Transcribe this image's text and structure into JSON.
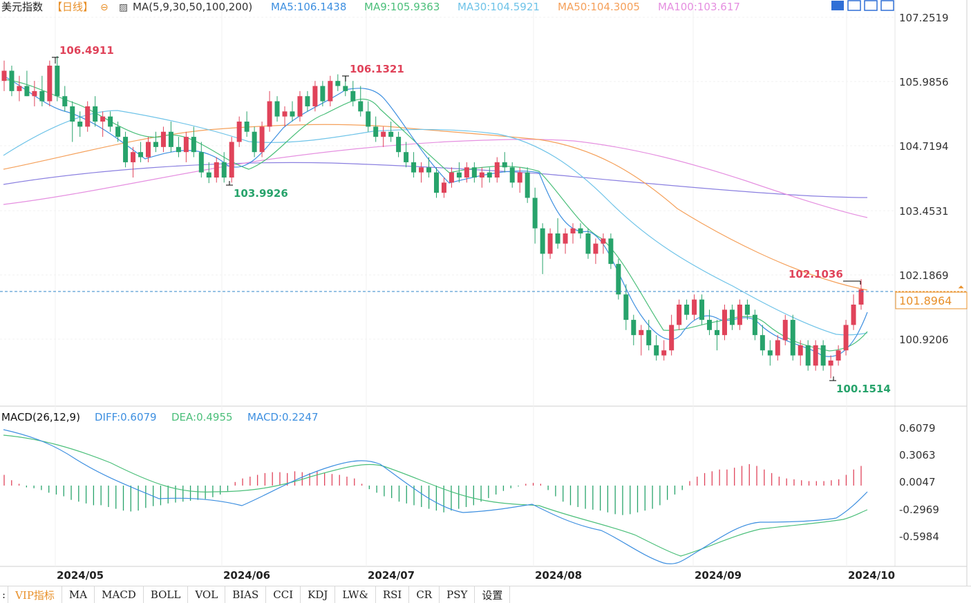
{
  "header": {
    "title": "美元指数",
    "period": "【日线】",
    "ma_label": "MA(5,9,30,50,100,200)",
    "ma_values": [
      {
        "text": "MA5:106.1438",
        "color": "#3d8fe0"
      },
      {
        "text": "MA9:105.9363",
        "color": "#4bbf7a"
      },
      {
        "text": "MA30:104.5921",
        "color": "#6ec3e8"
      },
      {
        "text": "MA50:104.3005",
        "color": "#f5a05a"
      },
      {
        "text": "MA100:103.617",
        "color": "#e58fe0"
      }
    ]
  },
  "price_axis": [
    "107.2519",
    "105.9856",
    "104.7194",
    "103.4531",
    "102.1869",
    "100.9206"
  ],
  "current_price": "101.8964",
  "annotations": {
    "high1": "106.4911",
    "high2": "106.1321",
    "low1": "103.9926",
    "high3": "102.1036",
    "low2": "100.1514"
  },
  "macd": {
    "label": "MACD(26,12,9)",
    "diff": "DIFF:0.6079",
    "dea": "DEA:0.4955",
    "macd": "MACD:0.2247",
    "axis": [
      "0.6079",
      "0.3063",
      "0.0047",
      "-0.2969",
      "-0.5984"
    ]
  },
  "x_axis": [
    "2024/05",
    "2024/06",
    "2024/07",
    "2024/08",
    "2024/09",
    "2024/10"
  ],
  "tabs": [
    "VIP指标",
    "MA",
    "MACD",
    "BOLL",
    "VOL",
    "BIAS",
    "CCI",
    "KDJ",
    "LW&",
    "RSI",
    "CR",
    "PSY",
    "设置"
  ],
  "colors": {
    "up": "#e0435a",
    "down": "#27a36b",
    "ma5": "#3d8fe0",
    "ma9": "#4bbf7a",
    "ma30": "#6ec3e8",
    "ma50": "#f5a05a",
    "ma100": "#e58fe0",
    "ma200": "#8a7fe0"
  },
  "chart_data": {
    "type": "candlestick",
    "title": "美元指数 日线",
    "x_labels": [
      "2024/05",
      "2024/06",
      "2024/07",
      "2024/08",
      "2024/09",
      "2024/10"
    ],
    "ylim": [
      99.9,
      107.5
    ],
    "candles": [
      [
        106.0,
        106.4,
        105.8,
        106.2
      ],
      [
        106.2,
        106.3,
        105.7,
        105.8
      ],
      [
        105.8,
        106.1,
        105.6,
        105.9
      ],
      [
        105.9,
        106.2,
        105.7,
        105.7
      ],
      [
        105.7,
        106.0,
        105.5,
        105.8
      ],
      [
        105.8,
        106.1,
        105.5,
        105.6
      ],
      [
        105.6,
        106.4,
        105.5,
        106.3
      ],
      [
        106.3,
        106.49,
        105.6,
        105.7
      ],
      [
        105.7,
        105.9,
        105.4,
        105.5
      ],
      [
        105.5,
        105.6,
        104.8,
        105.2
      ],
      [
        105.2,
        105.4,
        104.9,
        105.1
      ],
      [
        105.1,
        105.6,
        105.0,
        105.5
      ],
      [
        105.5,
        105.7,
        105.1,
        105.2
      ],
      [
        105.2,
        105.4,
        104.9,
        105.3
      ],
      [
        105.3,
        105.4,
        105.0,
        105.1
      ],
      [
        105.1,
        105.2,
        104.8,
        104.9
      ],
      [
        104.9,
        105.0,
        104.3,
        104.4
      ],
      [
        104.4,
        104.7,
        104.1,
        104.6
      ],
      [
        104.6,
        104.8,
        104.4,
        104.5
      ],
      [
        104.5,
        104.9,
        104.4,
        104.8
      ],
      [
        104.8,
        105.0,
        104.6,
        104.7
      ],
      [
        104.7,
        105.1,
        104.6,
        105.0
      ],
      [
        105.0,
        105.2,
        104.6,
        104.7
      ],
      [
        104.7,
        104.9,
        104.5,
        104.6
      ],
      [
        104.6,
        105.0,
        104.4,
        104.9
      ],
      [
        104.9,
        105.1,
        104.5,
        104.6
      ],
      [
        104.6,
        104.8,
        104.1,
        104.2
      ],
      [
        104.2,
        104.4,
        103.99,
        104.1
      ],
      [
        104.1,
        104.5,
        104.0,
        104.4
      ],
      [
        104.4,
        104.6,
        104.0,
        104.1
      ],
      [
        104.1,
        104.9,
        104.0,
        104.8
      ],
      [
        104.8,
        105.3,
        104.7,
        105.2
      ],
      [
        105.2,
        105.4,
        104.9,
        105.0
      ],
      [
        105.0,
        105.1,
        104.5,
        104.6
      ],
      [
        104.6,
        105.2,
        104.5,
        105.1
      ],
      [
        105.1,
        105.8,
        105.0,
        105.6
      ],
      [
        105.6,
        105.7,
        105.2,
        105.3
      ],
      [
        105.3,
        105.5,
        105.1,
        105.4
      ],
      [
        105.4,
        105.6,
        105.2,
        105.3
      ],
      [
        105.3,
        105.8,
        105.2,
        105.7
      ],
      [
        105.7,
        105.8,
        105.4,
        105.5
      ],
      [
        105.5,
        106.0,
        105.4,
        105.9
      ],
      [
        105.9,
        106.0,
        105.5,
        105.6
      ],
      [
        105.6,
        106.1,
        105.5,
        106.0
      ],
      [
        106.0,
        106.13,
        105.8,
        105.9
      ],
      [
        105.9,
        106.1,
        105.7,
        105.8
      ],
      [
        105.8,
        106.0,
        105.5,
        105.6
      ],
      [
        105.6,
        105.9,
        105.3,
        105.4
      ],
      [
        105.4,
        105.6,
        105.0,
        105.1
      ],
      [
        105.1,
        105.3,
        104.8,
        104.9
      ],
      [
        104.9,
        105.1,
        104.7,
        105.0
      ],
      [
        105.0,
        105.2,
        104.8,
        104.9
      ],
      [
        104.9,
        105.0,
        104.5,
        104.6
      ],
      [
        104.6,
        104.8,
        104.3,
        104.4
      ],
      [
        104.4,
        104.6,
        104.1,
        104.2
      ],
      [
        104.2,
        104.4,
        104.0,
        104.3
      ],
      [
        104.3,
        104.5,
        104.1,
        104.2
      ],
      [
        104.2,
        104.3,
        103.7,
        103.8
      ],
      [
        103.8,
        104.1,
        103.7,
        104.0
      ],
      [
        104.0,
        104.3,
        103.9,
        104.2
      ],
      [
        104.2,
        104.4,
        104.0,
        104.1
      ],
      [
        104.1,
        104.4,
        104.0,
        104.3
      ],
      [
        104.3,
        104.4,
        104.0,
        104.1
      ],
      [
        104.1,
        104.3,
        103.9,
        104.2
      ],
      [
        104.2,
        104.3,
        104.0,
        104.1
      ],
      [
        104.1,
        104.5,
        104.0,
        104.4
      ],
      [
        104.4,
        104.6,
        104.2,
        104.3
      ],
      [
        104.3,
        104.4,
        103.9,
        104.0
      ],
      [
        104.0,
        104.3,
        103.8,
        104.2
      ],
      [
        104.2,
        104.3,
        103.6,
        103.7
      ],
      [
        103.7,
        103.9,
        102.8,
        103.1
      ],
      [
        103.1,
        103.2,
        102.2,
        102.6
      ],
      [
        102.6,
        103.1,
        102.5,
        103.0
      ],
      [
        103.0,
        103.3,
        102.7,
        102.8
      ],
      [
        102.8,
        103.1,
        102.6,
        103.0
      ],
      [
        103.0,
        103.2,
        102.8,
        103.1
      ],
      [
        103.1,
        103.2,
        102.9,
        103.0
      ],
      [
        103.0,
        103.1,
        102.5,
        102.6
      ],
      [
        102.6,
        102.9,
        102.4,
        102.8
      ],
      [
        102.8,
        103.0,
        102.6,
        102.9
      ],
      [
        102.9,
        103.0,
        102.3,
        102.4
      ],
      [
        102.4,
        102.5,
        101.7,
        101.8
      ],
      [
        101.8,
        102.0,
        101.1,
        101.3
      ],
      [
        101.3,
        101.4,
        100.8,
        101.0
      ],
      [
        101.0,
        101.2,
        100.6,
        101.1
      ],
      [
        101.1,
        101.3,
        100.7,
        100.8
      ],
      [
        100.8,
        101.0,
        100.5,
        100.6
      ],
      [
        100.6,
        100.9,
        100.5,
        100.7
      ],
      [
        100.7,
        101.4,
        100.6,
        101.2
      ],
      [
        101.2,
        101.7,
        101.1,
        101.6
      ],
      [
        101.6,
        101.7,
        101.3,
        101.4
      ],
      [
        101.4,
        101.8,
        101.3,
        101.7
      ],
      [
        101.7,
        101.8,
        101.2,
        101.3
      ],
      [
        101.3,
        101.5,
        101.0,
        101.1
      ],
      [
        101.1,
        101.3,
        100.7,
        101.0
      ],
      [
        101.0,
        101.6,
        100.9,
        101.5
      ],
      [
        101.5,
        101.6,
        101.1,
        101.2
      ],
      [
        101.2,
        101.7,
        101.1,
        101.6
      ],
      [
        101.6,
        101.7,
        101.3,
        101.4
      ],
      [
        101.4,
        101.5,
        100.9,
        101.0
      ],
      [
        101.0,
        101.2,
        100.6,
        100.7
      ],
      [
        100.7,
        100.9,
        100.4,
        100.6
      ],
      [
        100.6,
        101.0,
        100.5,
        100.9
      ],
      [
        100.9,
        101.4,
        100.8,
        101.3
      ],
      [
        101.3,
        101.4,
        100.5,
        100.6
      ],
      [
        100.6,
        100.9,
        100.4,
        100.8
      ],
      [
        100.8,
        100.9,
        100.3,
        100.4
      ],
      [
        100.4,
        100.9,
        100.3,
        100.8
      ],
      [
        100.8,
        100.9,
        100.3,
        100.4
      ],
      [
        100.4,
        100.6,
        100.15,
        100.5
      ],
      [
        100.5,
        100.8,
        100.4,
        100.7
      ],
      [
        100.7,
        101.3,
        100.6,
        101.2
      ],
      [
        101.2,
        101.8,
        101.1,
        101.6
      ],
      [
        101.6,
        102.1,
        101.5,
        101.9
      ]
    ],
    "macd_hist": [
      0.12,
      0.06,
      0.02,
      -0.02,
      -0.03,
      -0.05,
      -0.08,
      -0.1,
      -0.12,
      -0.16,
      -0.18,
      -0.2,
      -0.22,
      -0.22,
      -0.24,
      -0.26,
      -0.28,
      -0.29,
      -0.28,
      -0.25,
      -0.23,
      -0.22,
      -0.2,
      -0.19,
      -0.18,
      -0.17,
      -0.16,
      -0.15,
      -0.13,
      -0.1,
      -0.06,
      0.04,
      0.08,
      0.1,
      0.12,
      0.14,
      0.15,
      0.15,
      0.14,
      0.16,
      0.15,
      0.14,
      0.16,
      0.14,
      0.13,
      0.12,
      0.1,
      0.08,
      0.02,
      -0.04,
      -0.08,
      -0.12,
      -0.14,
      -0.18,
      -0.2,
      -0.22,
      -0.24,
      -0.26,
      -0.28,
      -0.3,
      -0.28,
      -0.26,
      -0.24,
      -0.22,
      -0.18,
      -0.14,
      -0.1,
      -0.06,
      -0.03,
      -0.01,
      0.02,
      0.03,
      0.02,
      -0.05,
      -0.12,
      -0.18,
      -0.22,
      -0.24,
      -0.26,
      -0.27,
      -0.28,
      -0.3,
      -0.32,
      -0.33,
      -0.32,
      -0.3,
      -0.28,
      -0.26,
      -0.22,
      -0.16,
      -0.1,
      -0.05,
      0.05,
      0.1,
      0.14,
      0.16,
      0.18,
      0.18,
      0.2,
      0.22,
      0.24,
      0.22,
      0.18,
      0.14,
      0.1,
      0.08,
      0.07,
      0.06,
      0.05,
      0.05,
      0.05,
      0.06,
      0.07,
      0.12,
      0.18,
      0.22
    ]
  }
}
